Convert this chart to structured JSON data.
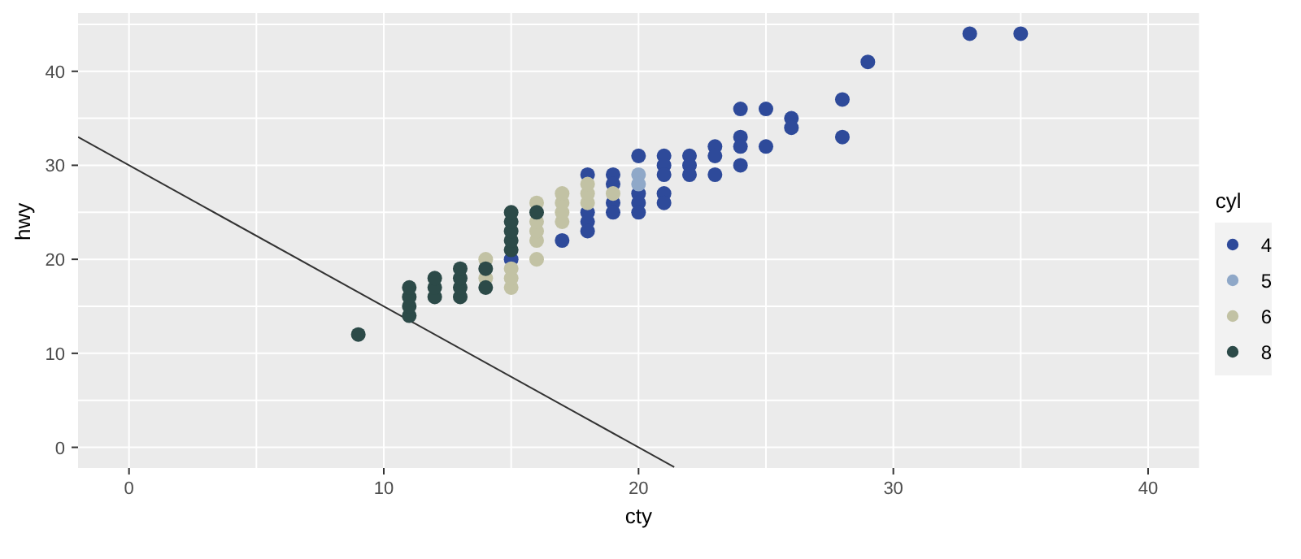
{
  "chart_data": {
    "type": "scatter",
    "xlabel": "cty",
    "ylabel": "hwy",
    "legend_title": "cyl",
    "legend": "right",
    "grid": true,
    "marker": "circle",
    "xlim": [
      -2,
      42
    ],
    "ylim": [
      -2.2,
      46.2
    ],
    "xticks": [
      0,
      {
        "value": 5,
        "label": null
      },
      10,
      {
        "value": 15,
        "label": null
      },
      20,
      {
        "value": 25,
        "label": null
      },
      30,
      {
        "value": 35,
        "label": null
      },
      40
    ],
    "yticks": [
      0,
      {
        "value": 5,
        "label": null
      },
      10,
      {
        "value": 15,
        "label": null
      },
      20,
      {
        "value": 25,
        "label": null
      },
      30,
      {
        "value": 35,
        "label": null
      },
      40,
      {
        "value": 45,
        "label": null
      }
    ],
    "series": [
      {
        "name": "4",
        "color": "#2e4a9a",
        "x": [
          15,
          17,
          18,
          18,
          18,
          18,
          19,
          19,
          19,
          19,
          20,
          20,
          20,
          20,
          21,
          21,
          21,
          21,
          21,
          22,
          22,
          22,
          23,
          23,
          23,
          24,
          24,
          24,
          24,
          25,
          25,
          26,
          26,
          28,
          28,
          29,
          33,
          35
        ],
        "values": [
          20,
          22,
          29,
          25,
          24,
          23,
          29,
          28,
          26,
          25,
          31,
          27,
          26,
          25,
          31,
          30,
          29,
          27,
          26,
          31,
          30,
          29,
          32,
          31,
          29,
          36,
          33,
          32,
          30,
          36,
          32,
          35,
          34,
          37,
          33,
          41,
          44,
          44
        ]
      },
      {
        "name": "5",
        "color": "#8fa8c8",
        "x": [
          20,
          20
        ],
        "values": [
          29,
          28
        ]
      },
      {
        "name": "6",
        "color": "#c2c2a4",
        "x": [
          14,
          14,
          15,
          15,
          15,
          16,
          16,
          16,
          16,
          16,
          17,
          17,
          17,
          17,
          18,
          18,
          18,
          19
        ],
        "values": [
          18,
          20,
          17,
          18,
          19,
          20,
          22,
          23,
          24,
          26,
          24,
          25,
          26,
          27,
          26,
          27,
          28,
          27
        ]
      },
      {
        "name": "8",
        "color": "#2c4a48",
        "x": [
          9,
          11,
          11,
          11,
          11,
          12,
          12,
          12,
          13,
          13,
          13,
          13,
          14,
          14,
          15,
          15,
          15,
          15,
          15,
          16
        ],
        "values": [
          12,
          14,
          15,
          16,
          17,
          16,
          17,
          18,
          16,
          17,
          18,
          19,
          17,
          19,
          21,
          22,
          23,
          24,
          25,
          25
        ]
      },
      {
        "type": "line",
        "color": "#333333",
        "marker": "none",
        "line_style": "solid",
        "x": [
          -2,
          21.4
        ],
        "values": [
          33,
          -2.1
        ]
      }
    ]
  }
}
